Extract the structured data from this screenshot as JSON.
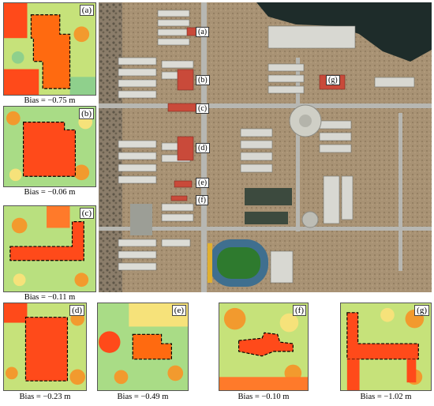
{
  "panels": [
    {
      "letter": "(a)",
      "bias": "Bias = −0.75 m"
    },
    {
      "letter": "(b)",
      "bias": "Bias = −0.06 m"
    },
    {
      "letter": "(c)",
      "bias": "Bias = −0.11 m"
    },
    {
      "letter": "(d)",
      "bias": "Bias = −0.23 m"
    },
    {
      "letter": "(e)",
      "bias": "Bias = −0.49 m"
    },
    {
      "letter": "(f)",
      "bias": "Bias = −0.10 m"
    },
    {
      "letter": "(g)",
      "bias": "Bias = −1.02 m"
    }
  ],
  "map_labels": [
    "(a)",
    "(b)",
    "(c)",
    "(d)",
    "(e)",
    "(f)",
    "(g)"
  ],
  "colors": {
    "building": "#ff4a1a",
    "building_hi": "#ff6a10",
    "tree": "#f29a2e",
    "ground_a": "#8fd08c",
    "ground_b": "#c6e27a",
    "ground_c": "#f6e27a",
    "road": "#9aa0a0",
    "roof_red": "#c94a3a"
  }
}
